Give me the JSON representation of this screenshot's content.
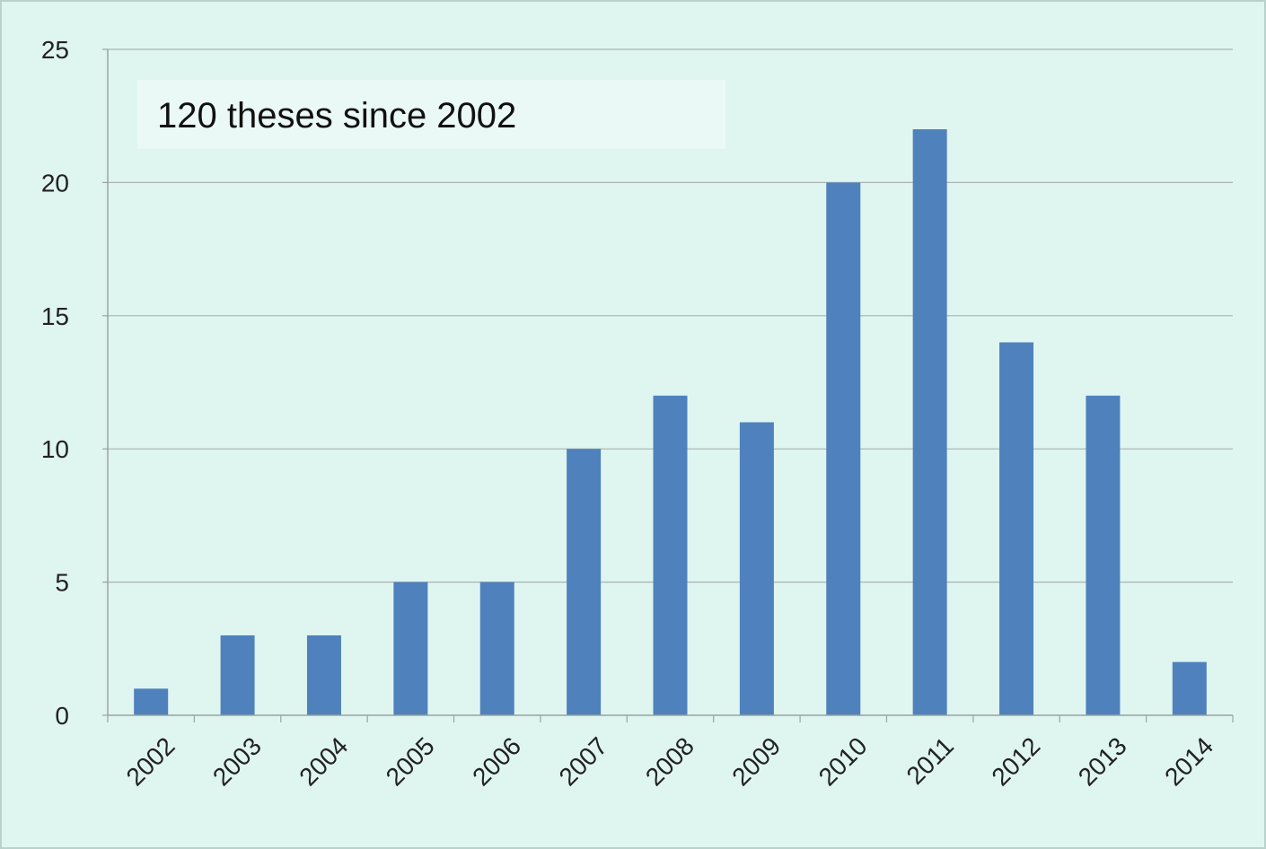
{
  "chart_data": {
    "type": "bar",
    "title": "",
    "xlabel": "",
    "ylabel": "",
    "categories": [
      "2002",
      "2003",
      "2004",
      "2005",
      "2006",
      "2007",
      "2008",
      "2009",
      "2010",
      "2011",
      "2012",
      "2013",
      "2014"
    ],
    "values": [
      1,
      3,
      3,
      5,
      5,
      10,
      12,
      11,
      20,
      22,
      14,
      12,
      2
    ],
    "ylim": [
      0,
      25
    ],
    "yticks": [
      0,
      5,
      10,
      15,
      20,
      25
    ],
    "grid": true,
    "legend": "none",
    "bar_color": "#4f81bd",
    "annotation": "120 theses since 2002"
  }
}
